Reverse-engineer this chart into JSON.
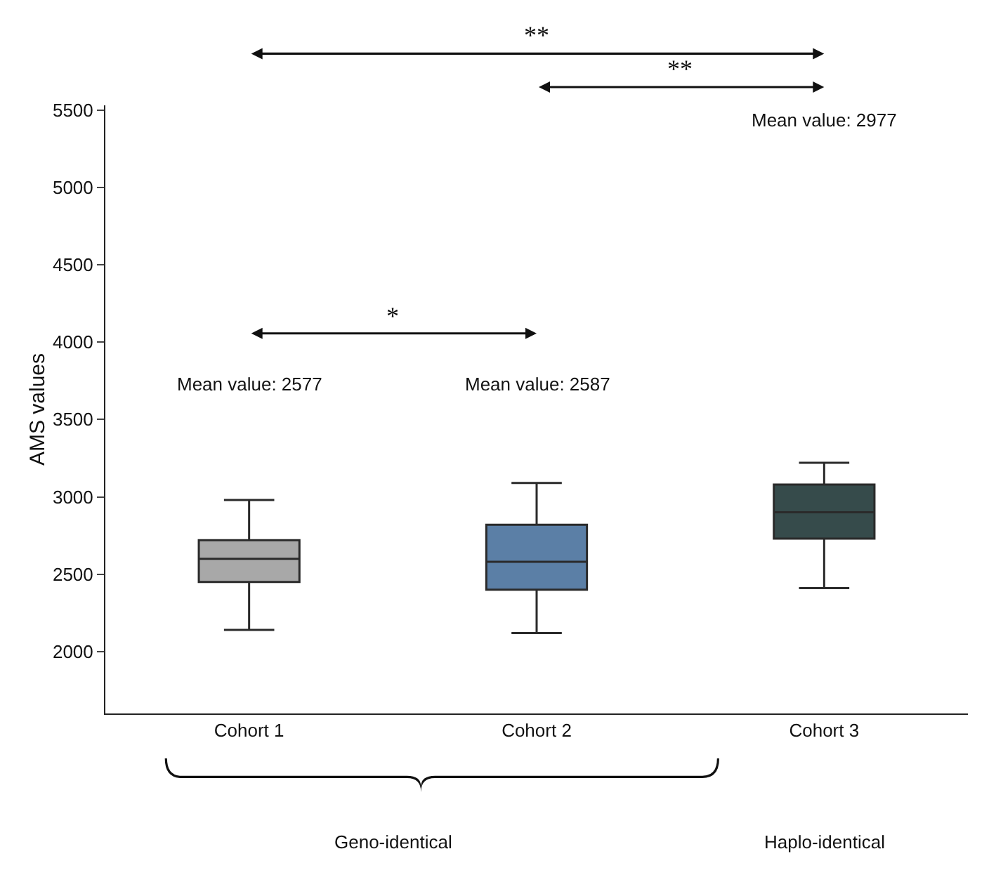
{
  "chart_data": {
    "type": "box",
    "ylabel": "AMS values",
    "categories": [
      "Cohort 1",
      "Cohort 2",
      "Cohort 3"
    ],
    "boxes": [
      {
        "low": 2140,
        "q1": 2450,
        "median": 2600,
        "q3": 2720,
        "high": 2980
      },
      {
        "low": 2120,
        "q1": 2400,
        "median": 2580,
        "q3": 2820,
        "high": 3090
      },
      {
        "low": 2410,
        "q1": 2730,
        "median": 2900,
        "q3": 3080,
        "high": 3220
      }
    ],
    "colors": [
      "#a8a8a8",
      "#5b7fa6",
      "#364b4b"
    ],
    "ylim": [
      1600,
      5530
    ],
    "yticks": [
      2000,
      2500,
      3000,
      3500,
      4000,
      4500,
      5000,
      5500
    ],
    "annotations": [
      "Mean value: 2577",
      "Mean value: 2587",
      "Mean value: 2977",
      "*",
      "**",
      "**",
      "Geno-identical",
      "Haplo-identical"
    ]
  }
}
